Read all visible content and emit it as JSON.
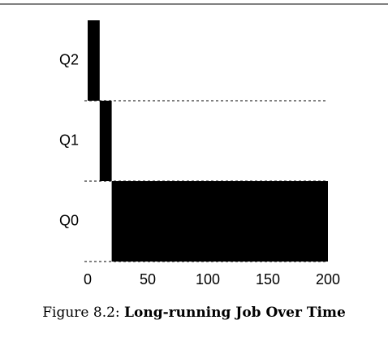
{
  "chart_data": {
    "type": "timeline",
    "caption_label": "Figure 8.2:",
    "title": "Long-running Job Over Time",
    "categories": [
      "Q2",
      "Q1",
      "Q0"
    ],
    "starts": [
      0,
      10,
      20
    ],
    "ends": [
      10,
      20,
      200
    ],
    "color": "#000000",
    "xlim": [
      0,
      200
    ],
    "xticks": [
      0,
      50,
      100,
      150,
      200
    ]
  }
}
